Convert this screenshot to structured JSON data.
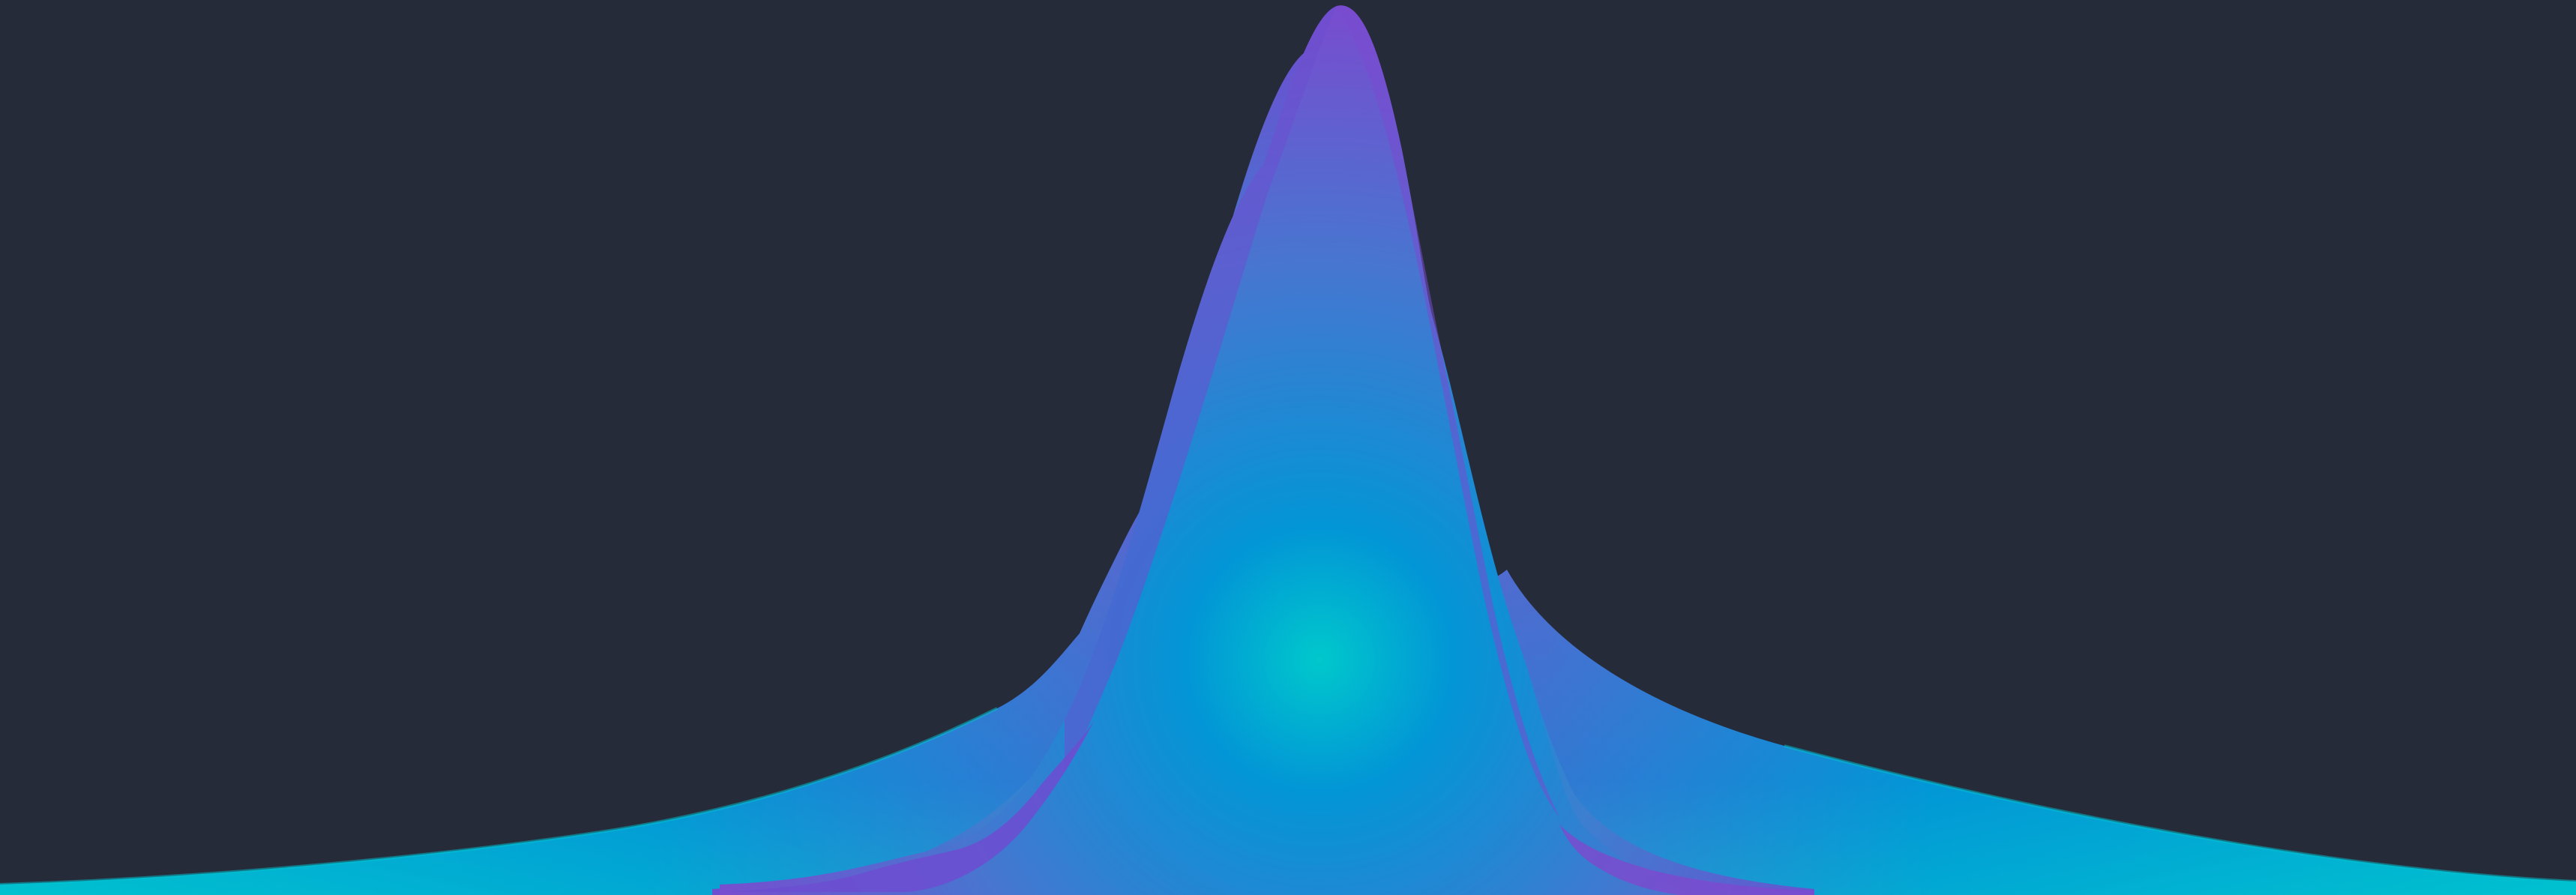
{
  "colors": {
    "background": "#262b3a",
    "teal": "#00c2cf",
    "cyan": "#0296d6",
    "blue": "#3d7fd0",
    "violet": "#6c4fd0",
    "purple": "#7a4bcf"
  },
  "graphic": {
    "kind": "abstract-wave-illustration",
    "layers": [
      "wide-base-wave",
      "mid-wave",
      "peak-wave"
    ]
  }
}
